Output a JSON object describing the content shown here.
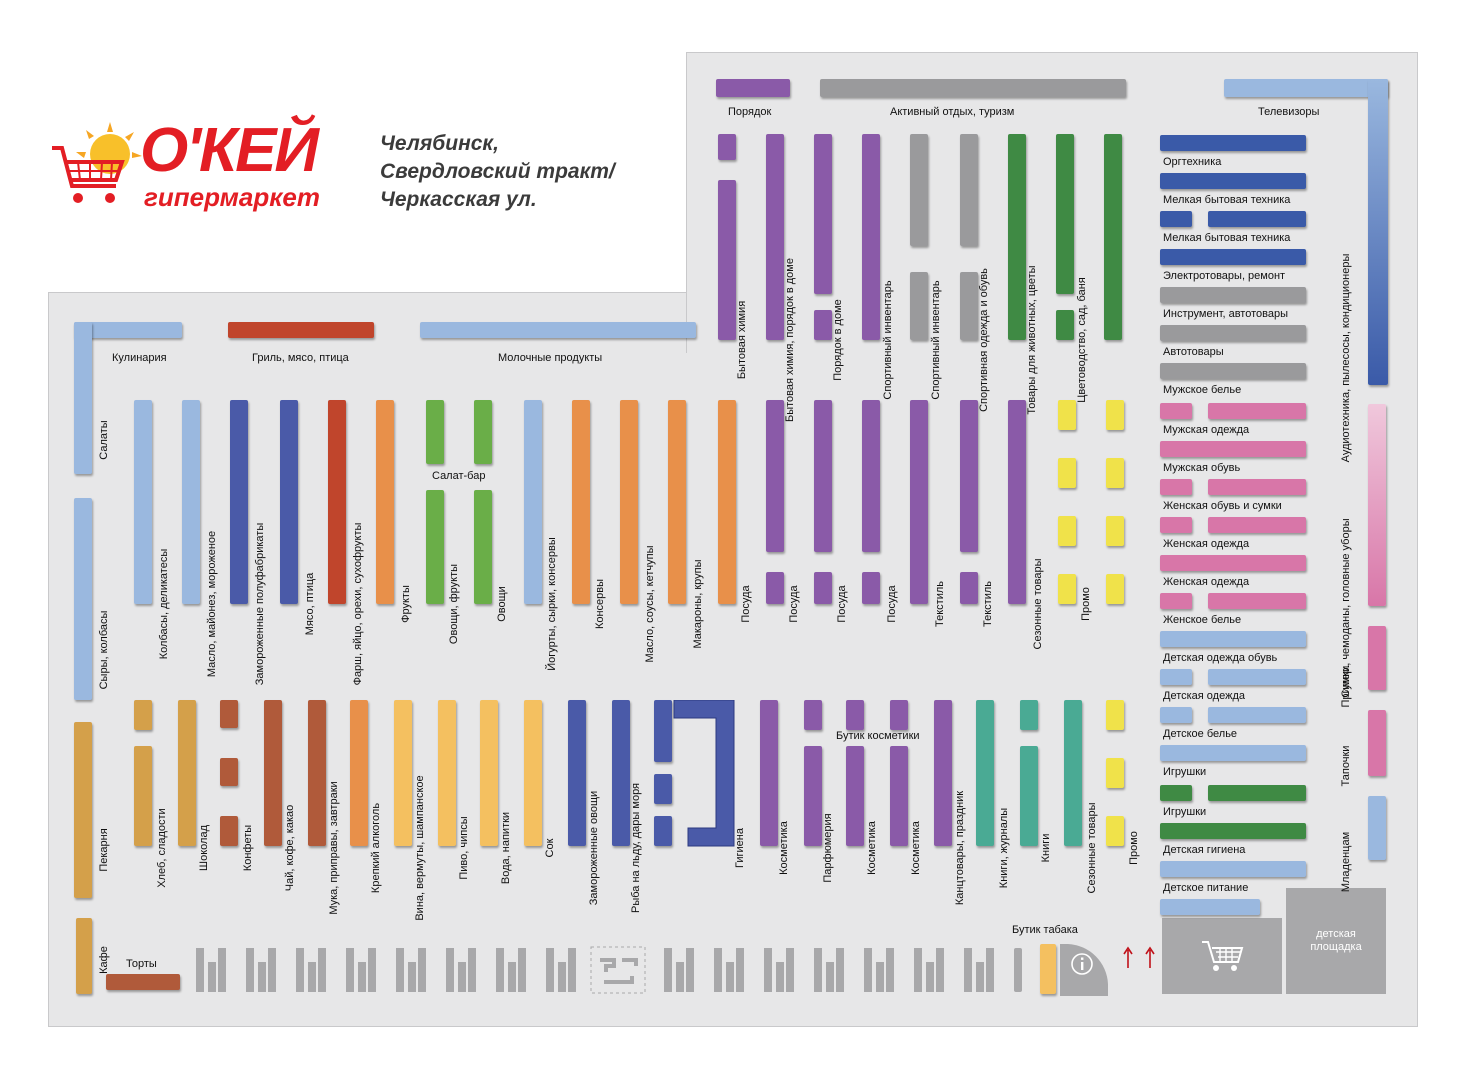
{
  "logo": {
    "name": "О'КЕЙ",
    "subtitle": "гипермаркет"
  },
  "store_location": [
    "Челябинск,",
    "Свердловский тракт/",
    "Черкасская ул."
  ],
  "departments": {
    "kulinaria": "Кулинария",
    "gril": "Гриль, мясо, птица",
    "molochnye": "Молочные продукты",
    "poryadok": "Порядок",
    "aktivnyi_otdyh": "Активный отдых, туризм",
    "televizory": "Телевизоры",
    "salaty": "Салаты",
    "syry": "Сыры, колбасы",
    "pekarnya": "Пекарня",
    "kafe": "Кафе",
    "torty": "Торты",
    "salat_bar": "Салат-бар",
    "butik_kosmetiki": "Бутик косметики",
    "butik_tabaka": "Бутик табака",
    "detskaya_ploshadka": "детская площадка",
    "audio": "Аудиотехника, пылесосы, кондиционеры",
    "sumki": "Сумки, чемоданы, головные уборы",
    "primer": "Пример.",
    "tapochki": "Тапочки",
    "mladencam": "Младенцам"
  },
  "right_aisles": [
    "Оргтехника",
    "Мелкая бытовая техника",
    "Мелкая бытовая техника",
    "Электротовары, ремонт",
    "Инструмент, автотовары",
    "Автотовары",
    "Мужское белье",
    "Мужская одежда",
    "Мужская обувь",
    "Женская обувь и сумки",
    "Женская одежда",
    "Женская одежда",
    "Женское белье",
    "Детская одежда обувь",
    "Детская одежда",
    "Детское белье",
    "Игрушки",
    "Игрушки",
    "Детская гигиена",
    "Детское питание"
  ],
  "vertical_labels": {
    "kolbasy": "Колбасы, деликатесы",
    "maslo_mayonez": "Масло, майонез, мороженое",
    "zamorozhennye_pf": "Замороженные полуфабрикаты",
    "myaso": "Мясо, птица",
    "farsh": "Фарш, яйцо, орехи, сухофрукты",
    "frukty": "Фрукты",
    "ovoshi_frukty": "Овощи, фрукты",
    "ovoshi": "Овощи",
    "yogurty": "Йогурты, сырки, консервы",
    "konservy": "Консервы",
    "maslo_sousy": "Масло, соусы, кетчупы",
    "makarony": "Макароны, крупы",
    "posuda": "Посуда",
    "tekstil": "Текстиль",
    "sezonnye": "Сезонные товары",
    "promo": "Промо",
    "bytovaya_himiya": "Бытовая химия",
    "bh_poryadok": "Бытовая химия, порядок в доме",
    "poryadok_v_dome": "Порядок в доме",
    "sport_inventar": "Спортивный инвентарь",
    "sport_odezhda": "Спортивная одежда и обувь",
    "tovary_zhivotnym": "Товары для животных, цветы",
    "cvetovodstvo": "Цветоводство, сад, баня",
    "hleb": "Хлеб, сладости",
    "shokolad": "Шоколад",
    "konfety": "Конфеты",
    "chay": "Чай, кофе, какао",
    "muka": "Мука, приправы, завтраки",
    "krepkiy": "Крепкий алкоголь",
    "vina": "Вина, вермуты, шампанское",
    "pivo": "Пиво, чипсы",
    "voda": "Вода, напитки",
    "sok": "Сок",
    "zamorozhennye_ovoshi": "Замороженные овощи",
    "ryba": "Рыба на льду, дары моря",
    "gigiena": "Гигиена",
    "kosmetika": "Косметика",
    "parfyumeriya": "Парфюмерия",
    "kanctovary": "Канцтовары, праздник",
    "knigi_zhurnaly": "Книги, журналы",
    "knigi": "Книги"
  },
  "colors": {
    "logo_red": "#e31e24",
    "purple": "#8a5aa8",
    "blue": "#4a6ab0",
    "light_blue": "#9ab8df",
    "orange": "#e8904a",
    "pink": "#d876a8",
    "green": "#6aae48",
    "dark_green": "#3f8a44",
    "teal": "#4aaa94",
    "gray": "#9a9a9c",
    "yellow": "#f0e24a",
    "brick": "#b05a3a",
    "tan": "#d4a04a",
    "light_orange": "#f4c060",
    "red_brown": "#c0452c"
  },
  "icons": [
    "cart-logo-icon",
    "shopping-cart-icon",
    "info-icon",
    "escalator-arrows-icon"
  ]
}
